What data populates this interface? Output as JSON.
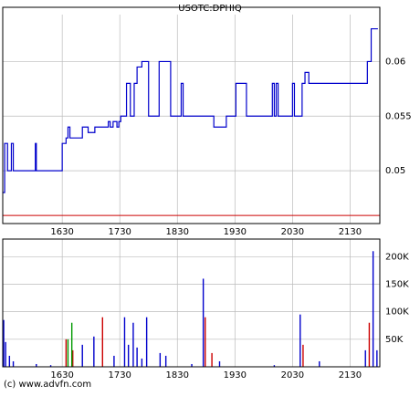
{
  "chart_data": [
    {
      "type": "line",
      "title": "USOTC:DPHIQ",
      "series": [
        {
          "color": "#0000cc",
          "x": [
            928,
            930,
            933,
            937,
            939,
            960,
            962,
            963,
            988,
            990,
            994,
            996,
            998,
            1011,
            1017,
            1024,
            1038,
            1040,
            1043,
            1047,
            1049,
            1051,
            1055,
            1057,
            1060,
            1061,
            1065,
            1068,
            1073,
            1078,
            1080,
            1089,
            1091,
            1101,
            1103,
            1112,
            1114,
            1116,
            1144,
            1148,
            1160,
            1161,
            1169,
            1171,
            1180,
            1182,
            1207,
            1209,
            1211,
            1213,
            1215,
            1228,
            1230,
            1232,
            1236,
            1240,
            1243,
            1247,
            1306,
            1308,
            1312,
            1319
          ],
          "values": [
            0.048,
            0.0525,
            0.05,
            0.0525,
            0.05,
            0.05,
            0.0525,
            0.05,
            0.05,
            0.0525,
            0.053,
            0.054,
            0.053,
            0.054,
            0.0535,
            0.054,
            0.0545,
            0.054,
            0.0545,
            0.054,
            0.0545,
            0.055,
            0.055,
            0.058,
            0.058,
            0.055,
            0.058,
            0.0595,
            0.06,
            0.06,
            0.055,
            0.055,
            0.06,
            0.06,
            0.055,
            0.055,
            0.058,
            0.055,
            0.055,
            0.054,
            0.054,
            0.055,
            0.055,
            0.058,
            0.058,
            0.055,
            0.055,
            0.058,
            0.055,
            0.058,
            0.055,
            0.055,
            0.058,
            0.055,
            0.055,
            0.058,
            0.059,
            0.058,
            0.058,
            0.06,
            0.063,
            0.063
          ]
        }
      ],
      "ref_line": {
        "value": 0.0459,
        "color": "#cc0000"
      },
      "xlim": [
        928,
        1321
      ],
      "xticks": [
        {
          "value": 990,
          "label": "1630"
        },
        {
          "value": 1050,
          "label": "1730"
        },
        {
          "value": 1110,
          "label": "1830"
        },
        {
          "value": 1170,
          "label": "1930"
        },
        {
          "value": 1230,
          "label": "2030"
        },
        {
          "value": 1290,
          "label": "2130"
        }
      ],
      "ylim": [
        0.04516,
        0.0643
      ],
      "yticks": [
        0.05,
        0.055,
        0.06
      ],
      "grid": true
    },
    {
      "type": "bar",
      "source": "(c) www.advfn.com",
      "series": [
        {
          "color": "#0000cc",
          "x": [
            929,
            931,
            935,
            939,
            963,
            978,
            1011,
            1023,
            1044,
            1055,
            1059,
            1064,
            1068,
            1073,
            1078,
            1092,
            1098,
            1125,
            1137,
            1154,
            1211,
            1238,
            1258,
            1306,
            1314,
            1318
          ],
          "values": [
            85000,
            45000,
            20000,
            10000,
            5000,
            3000,
            40000,
            55000,
            20000,
            90000,
            40000,
            80000,
            35000,
            15000,
            90000,
            25000,
            20000,
            5000,
            160000,
            10000,
            3000,
            95000,
            10000,
            30000,
            210000,
            30000
          ]
        },
        {
          "color": "#cc0000",
          "x": [
            994,
            1001,
            1032,
            1139,
            1146,
            1241,
            1310
          ],
          "values": [
            50000,
            30000,
            90000,
            90000,
            25000,
            40000,
            80000
          ]
        },
        {
          "color": "#009900",
          "x": [
            996,
            1000
          ],
          "values": [
            50000,
            80000
          ]
        }
      ],
      "xlim": [
        928,
        1321
      ],
      "xticks": [
        {
          "value": 990,
          "label": "1630"
        },
        {
          "value": 1050,
          "label": "1730"
        },
        {
          "value": 1110,
          "label": "1830"
        },
        {
          "value": 1170,
          "label": "1930"
        },
        {
          "value": 1230,
          "label": "2030"
        },
        {
          "value": 1290,
          "label": "2130"
        }
      ],
      "ylim": [
        0,
        232000
      ],
      "yticks": [
        {
          "value": 50000,
          "label": "50K"
        },
        {
          "value": 100000,
          "label": "100K"
        },
        {
          "value": 150000,
          "label": "150K"
        },
        {
          "value": 200000,
          "label": "200K"
        }
      ],
      "grid": true
    }
  ]
}
